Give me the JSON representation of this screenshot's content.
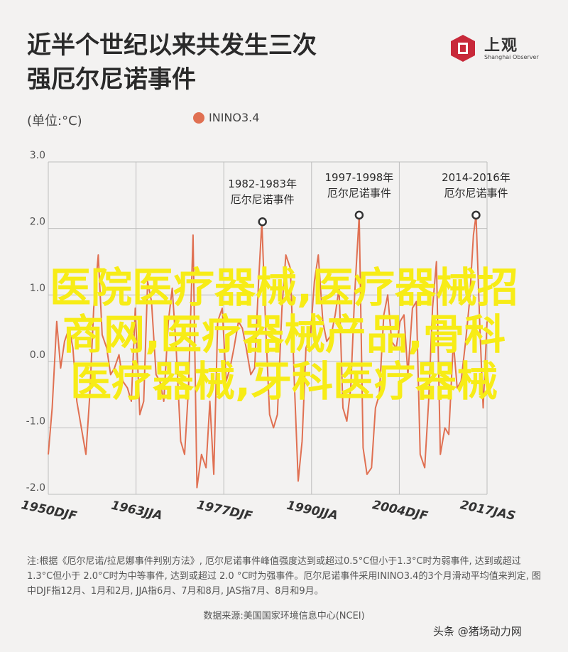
{
  "title": {
    "line1": "近半个世纪以来共发生三次",
    "line2": "强厄尔尼诺事件"
  },
  "logo": {
    "cn": "上观",
    "en": "Shanghai Observer"
  },
  "unit_label": "(单位:°C)",
  "colors": {
    "series": "#e07052",
    "grid": "#bdbdbd",
    "axis": "#555555",
    "marker": "#333333",
    "overlay_text": "#f7ec16",
    "background": "#f3f2f1"
  },
  "chart_data": {
    "type": "line",
    "ylim": [
      -2.0,
      3.0
    ],
    "yticks": [
      "3.0",
      "2.0",
      "1.0",
      "0.0",
      "-1.0",
      "-2.0"
    ],
    "xticks": [
      "1950DJF",
      "1963JJA",
      "1977DJF",
      "1990JJA",
      "2004DJF",
      "2017JAS"
    ],
    "xlim": [
      1950.0,
      2017.6
    ],
    "grid": true,
    "legend_position": "top",
    "series": [
      {
        "name": "ININO3.4",
        "x": [
          1950.0,
          1950.6,
          1951.3,
          1951.9,
          1952.5,
          1953.2,
          1953.8,
          1954.4,
          1955.1,
          1955.8,
          1956.4,
          1957.0,
          1957.7,
          1958.3,
          1959.0,
          1959.6,
          1960.2,
          1960.9,
          1961.5,
          1962.2,
          1962.8,
          1963.4,
          1964.1,
          1964.7,
          1965.3,
          1965.9,
          1966.6,
          1967.2,
          1967.8,
          1968.5,
          1969.1,
          1969.7,
          1970.4,
          1971.0,
          1971.6,
          1972.3,
          1972.9,
          1973.6,
          1974.3,
          1974.9,
          1975.5,
          1976.1,
          1976.8,
          1977.4,
          1978.0,
          1978.6,
          1979.3,
          1979.9,
          1980.5,
          1981.2,
          1981.8,
          1982.4,
          1982.9,
          1983.5,
          1984.1,
          1984.7,
          1985.3,
          1986.0,
          1986.6,
          1987.3,
          1987.9,
          1988.5,
          1989.1,
          1989.7,
          1990.4,
          1991.0,
          1991.6,
          1992.3,
          1992.9,
          1993.6,
          1994.2,
          1994.8,
          1995.4,
          1996.0,
          1996.6,
          1997.2,
          1997.9,
          1998.5,
          1999.1,
          1999.8,
          2000.4,
          2001.0,
          2001.7,
          2002.3,
          2002.9,
          2003.6,
          2004.2,
          2004.8,
          2005.4,
          2006.1,
          2006.7,
          2007.3,
          2008.0,
          2008.6,
          2009.2,
          2009.8,
          2010.4,
          2011.1,
          2011.7,
          2012.4,
          2013.0,
          2013.6,
          2014.3,
          2014.9,
          2015.5,
          2015.9,
          2016.5,
          2017.0,
          2017.6
        ],
        "values": [
          -1.4,
          -0.7,
          0.6,
          -0.1,
          0.3,
          0.5,
          0.2,
          -0.6,
          -1.0,
          -1.4,
          -0.5,
          0.8,
          1.6,
          0.4,
          0.2,
          -0.2,
          -0.1,
          0.1,
          -0.3,
          -0.4,
          -0.6,
          0.8,
          -0.8,
          -0.6,
          1.2,
          0.9,
          -0.2,
          -0.3,
          -0.6,
          0.6,
          1.1,
          0.2,
          -1.2,
          -1.4,
          -0.4,
          1.9,
          -1.9,
          -1.4,
          -1.6,
          -0.6,
          -1.7,
          0.6,
          0.8,
          -0.3,
          -0.1,
          0.2,
          0.6,
          0.5,
          0.2,
          -0.2,
          -0.1,
          1.2,
          2.1,
          0.5,
          -0.8,
          -1.0,
          -0.8,
          0.8,
          1.6,
          1.4,
          -0.3,
          -1.8,
          -1.2,
          0.2,
          0.4,
          1.2,
          1.6,
          0.6,
          0.3,
          0.4,
          0.7,
          1.1,
          -0.7,
          -0.9,
          -0.4,
          1.0,
          2.2,
          -1.3,
          -1.7,
          -1.6,
          -0.7,
          -0.5,
          0.7,
          1.0,
          0.3,
          0.2,
          0.6,
          0.7,
          -0.2,
          0.8,
          0.9,
          -1.4,
          -1.6,
          -0.6,
          0.8,
          1.5,
          -1.4,
          -1.0,
          -1.1,
          0.3,
          -0.4,
          -0.3,
          0.3,
          0.9,
          1.9,
          2.2,
          0.5,
          -0.7,
          0.6
        ]
      }
    ],
    "annotations": [
      {
        "x": 1983.0,
        "y": 2.1,
        "line1": "1982-1983年",
        "line2": "厄尔尼诺事件"
      },
      {
        "x": 1997.9,
        "y": 2.2,
        "line1": "1997-1998年",
        "line2": "厄尔尼诺事件"
      },
      {
        "x": 2015.9,
        "y": 2.2,
        "line1": "2014-2016年",
        "line2": "厄尔尼诺事件"
      }
    ]
  },
  "note": "注:根据《厄尔尼诺/拉尼娜事件判别方法》, 厄尔尼诺事件峰值强度达到或超过0.5°C但小于1.3°C时为弱事件, 达到或超过 1.3°C但小于 2.0°C时为中等事件, 达到或超过 2.0 °C时为强事件。厄尔尼诺事件采用ININO3.4的3个月滑动平均值来判定, 图中DJF指12月、1月和2月, JJA指6月、7月和8月, JAS指7月、8月和9月。",
  "source": "数据来源:美国国家环境信息中心(NCEI)",
  "watermark": "头条 @猪场动力网",
  "overlay": {
    "line1": "医院医疗器械,医疗器械招",
    "line2": "商网,医疗器械产品,骨科",
    "line3": "医疗器械,牙科医疗器械"
  }
}
